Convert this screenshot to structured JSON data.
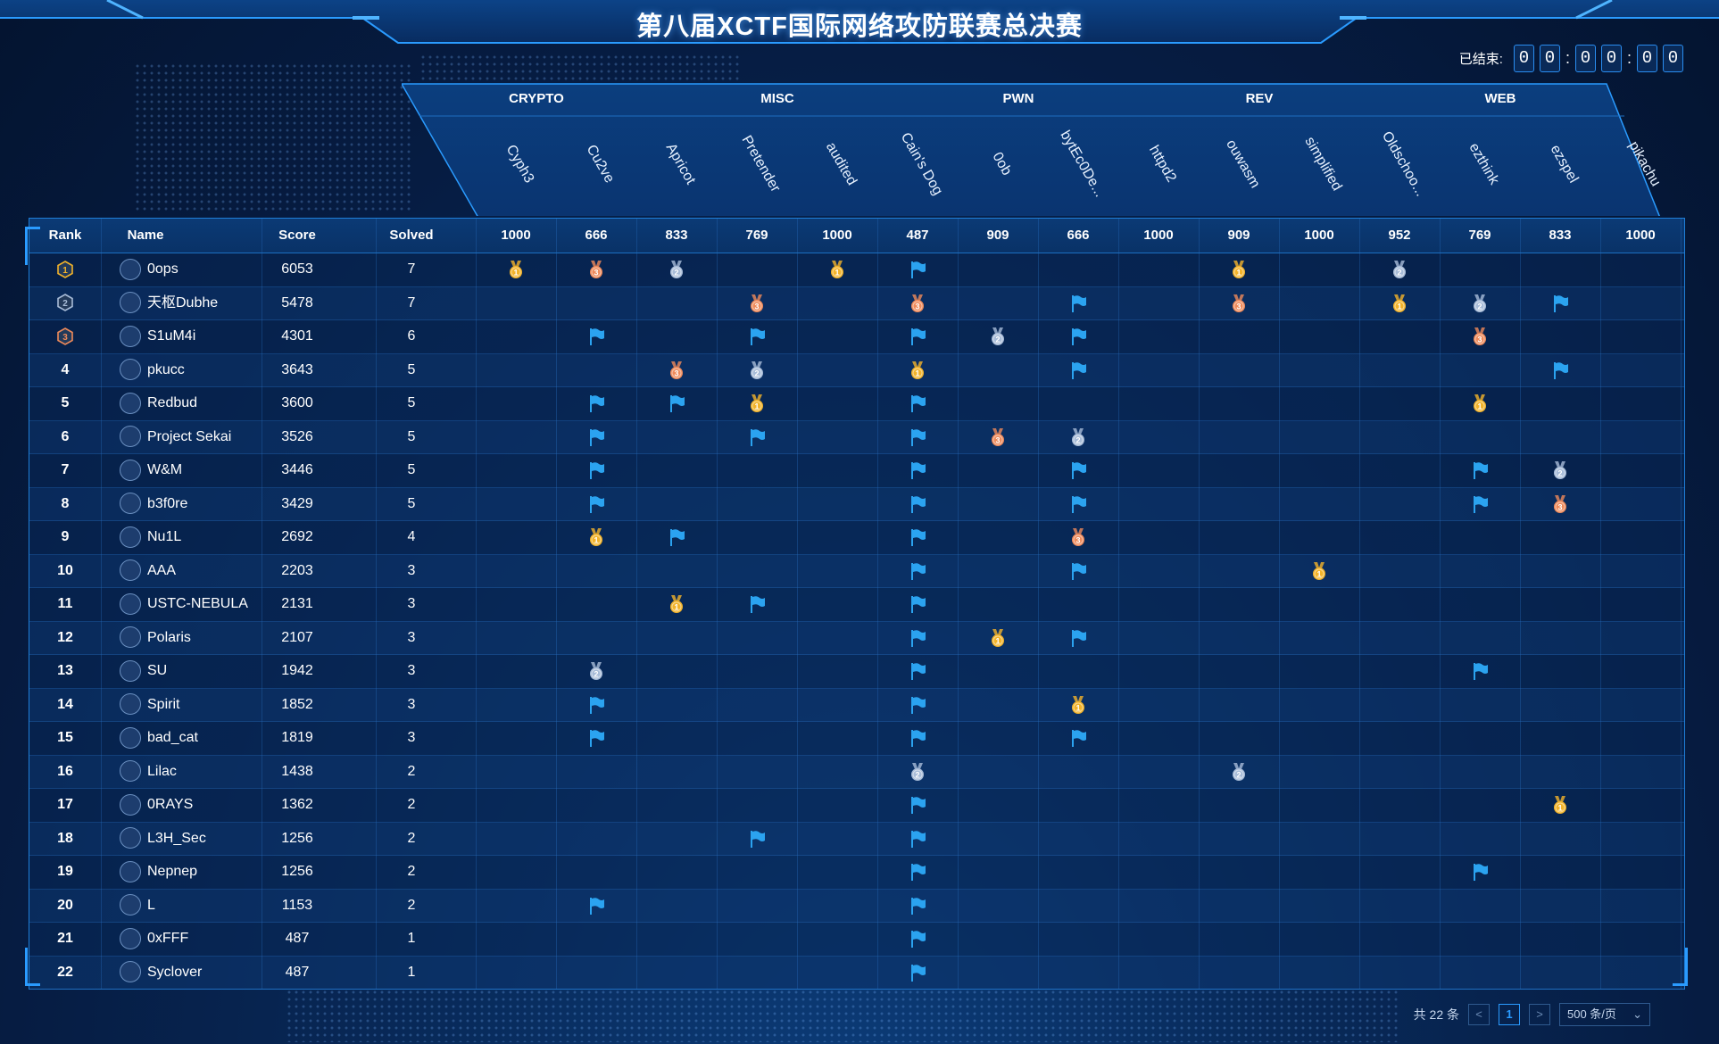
{
  "header": {
    "title": "第八届XCTF国际网络攻防联赛总决赛",
    "timer_label": "已结束:",
    "timer_digits": [
      "0",
      "0",
      "0",
      "0",
      "0",
      "0"
    ]
  },
  "categories": [
    "CRYPTO",
    "MISC",
    "PWN",
    "REV",
    "WEB"
  ],
  "challenges": [
    "Cyph3",
    "Cu2ve",
    "Apricot",
    "Pretender",
    "audited",
    "Cain's Dog",
    "0ob",
    "bytEc0De...",
    "httpd2",
    "ouwasm",
    "simplified",
    "Oldschoo...",
    "ezthink",
    "ezspel",
    "pikachu"
  ],
  "table": {
    "headers": {
      "rank": "Rank",
      "name": "Name",
      "score": "Score",
      "solved": "Solved"
    },
    "challenge_points": [
      "1000",
      "666",
      "833",
      "769",
      "1000",
      "487",
      "909",
      "666",
      "1000",
      "909",
      "1000",
      "952",
      "769",
      "833",
      "1000"
    ],
    "rows": [
      {
        "rank": "1",
        "name": "0ops",
        "score": "6053",
        "solved": "7",
        "marks": [
          "1",
          "3",
          "2",
          "",
          "1",
          "f",
          "",
          "",
          "",
          "1",
          "",
          "2",
          "",
          "",
          ""
        ]
      },
      {
        "rank": "2",
        "name": "天枢Dubhe",
        "score": "5478",
        "solved": "7",
        "marks": [
          "",
          "",
          "",
          "3",
          "",
          "3",
          "",
          "f",
          "",
          "3",
          "",
          "1",
          "2",
          "f",
          ""
        ]
      },
      {
        "rank": "3",
        "name": "S1uM4i",
        "score": "4301",
        "solved": "6",
        "marks": [
          "",
          "f",
          "",
          "f",
          "",
          "f",
          "2",
          "f",
          "",
          "",
          "",
          "",
          "3",
          "",
          ""
        ]
      },
      {
        "rank": "4",
        "name": "pkucc",
        "score": "3643",
        "solved": "5",
        "marks": [
          "",
          "",
          "3",
          "2",
          "",
          "1",
          "",
          "f",
          "",
          "",
          "",
          "",
          "",
          "f",
          ""
        ]
      },
      {
        "rank": "5",
        "name": "Redbud",
        "score": "3600",
        "solved": "5",
        "marks": [
          "",
          "f",
          "f",
          "1",
          "",
          "f",
          "",
          "",
          "",
          "",
          "",
          "",
          "1",
          "",
          ""
        ]
      },
      {
        "rank": "6",
        "name": "Project Sekai",
        "score": "3526",
        "solved": "5",
        "marks": [
          "",
          "f",
          "",
          "f",
          "",
          "f",
          "3",
          "2",
          "",
          "",
          "",
          "",
          "",
          "",
          ""
        ]
      },
      {
        "rank": "7",
        "name": "W&M",
        "score": "3446",
        "solved": "5",
        "marks": [
          "",
          "f",
          "",
          "",
          "",
          "f",
          "",
          "f",
          "",
          "",
          "",
          "",
          "f",
          "2",
          ""
        ]
      },
      {
        "rank": "8",
        "name": "b3f0re",
        "score": "3429",
        "solved": "5",
        "marks": [
          "",
          "f",
          "",
          "",
          "",
          "f",
          "",
          "f",
          "",
          "",
          "",
          "",
          "f",
          "3",
          ""
        ]
      },
      {
        "rank": "9",
        "name": "Nu1L",
        "score": "2692",
        "solved": "4",
        "marks": [
          "",
          "1",
          "f",
          "",
          "",
          "f",
          "",
          "3",
          "",
          "",
          "",
          "",
          "",
          "",
          ""
        ]
      },
      {
        "rank": "10",
        "name": "AAA",
        "score": "2203",
        "solved": "3",
        "marks": [
          "",
          "",
          "",
          "",
          "",
          "f",
          "",
          "f",
          "",
          "",
          "1",
          "",
          "",
          "",
          ""
        ]
      },
      {
        "rank": "11",
        "name": "USTC-NEBULA",
        "score": "2131",
        "solved": "3",
        "marks": [
          "",
          "",
          "1",
          "f",
          "",
          "f",
          "",
          "",
          "",
          "",
          "",
          "",
          "",
          "",
          ""
        ]
      },
      {
        "rank": "12",
        "name": "Polaris",
        "score": "2107",
        "solved": "3",
        "marks": [
          "",
          "",
          "",
          "",
          "",
          "f",
          "1",
          "f",
          "",
          "",
          "",
          "",
          "",
          "",
          ""
        ]
      },
      {
        "rank": "13",
        "name": "SU",
        "score": "1942",
        "solved": "3",
        "marks": [
          "",
          "2",
          "",
          "",
          "",
          "f",
          "",
          "",
          "",
          "",
          "",
          "",
          "f",
          "",
          ""
        ]
      },
      {
        "rank": "14",
        "name": "Spirit",
        "score": "1852",
        "solved": "3",
        "marks": [
          "",
          "f",
          "",
          "",
          "",
          "f",
          "",
          "1",
          "",
          "",
          "",
          "",
          "",
          "",
          ""
        ]
      },
      {
        "rank": "15",
        "name": "bad_cat",
        "score": "1819",
        "solved": "3",
        "marks": [
          "",
          "f",
          "",
          "",
          "",
          "f",
          "",
          "f",
          "",
          "",
          "",
          "",
          "",
          "",
          ""
        ]
      },
      {
        "rank": "16",
        "name": "Lilac",
        "score": "1438",
        "solved": "2",
        "marks": [
          "",
          "",
          "",
          "",
          "",
          "2",
          "",
          "",
          "",
          "2",
          "",
          "",
          "",
          "",
          ""
        ]
      },
      {
        "rank": "17",
        "name": "0RAYS",
        "score": "1362",
        "solved": "2",
        "marks": [
          "",
          "",
          "",
          "",
          "",
          "f",
          "",
          "",
          "",
          "",
          "",
          "",
          "",
          "1",
          ""
        ]
      },
      {
        "rank": "18",
        "name": "L3H_Sec",
        "score": "1256",
        "solved": "2",
        "marks": [
          "",
          "",
          "",
          "f",
          "",
          "f",
          "",
          "",
          "",
          "",
          "",
          "",
          "",
          "",
          ""
        ]
      },
      {
        "rank": "19",
        "name": "Nepnep",
        "score": "1256",
        "solved": "2",
        "marks": [
          "",
          "",
          "",
          "",
          "",
          "f",
          "",
          "",
          "",
          "",
          "",
          "",
          "f",
          "",
          ""
        ]
      },
      {
        "rank": "20",
        "name": "L",
        "score": "1153",
        "solved": "2",
        "marks": [
          "",
          "f",
          "",
          "",
          "",
          "f",
          "",
          "",
          "",
          "",
          "",
          "",
          "",
          "",
          ""
        ]
      },
      {
        "rank": "21",
        "name": "0xFFF",
        "score": "487",
        "solved": "1",
        "marks": [
          "",
          "",
          "",
          "",
          "",
          "f",
          "",
          "",
          "",
          "",
          "",
          "",
          "",
          "",
          ""
        ]
      },
      {
        "rank": "22",
        "name": "Syclover",
        "score": "487",
        "solved": "1",
        "marks": [
          "",
          "",
          "",
          "",
          "",
          "f",
          "",
          "",
          "",
          "",
          "",
          "",
          "",
          "",
          ""
        ]
      }
    ]
  },
  "pager": {
    "total": "共 22 条",
    "prev": "<",
    "page": "1",
    "next": ">",
    "page_size": "500 条/页"
  },
  "colors": {
    "gold": "#f2b32a",
    "silver": "#a8bcd8",
    "bronze": "#ef8a5a",
    "flag": "#2ba3f0",
    "accent": "#2a9bff"
  }
}
